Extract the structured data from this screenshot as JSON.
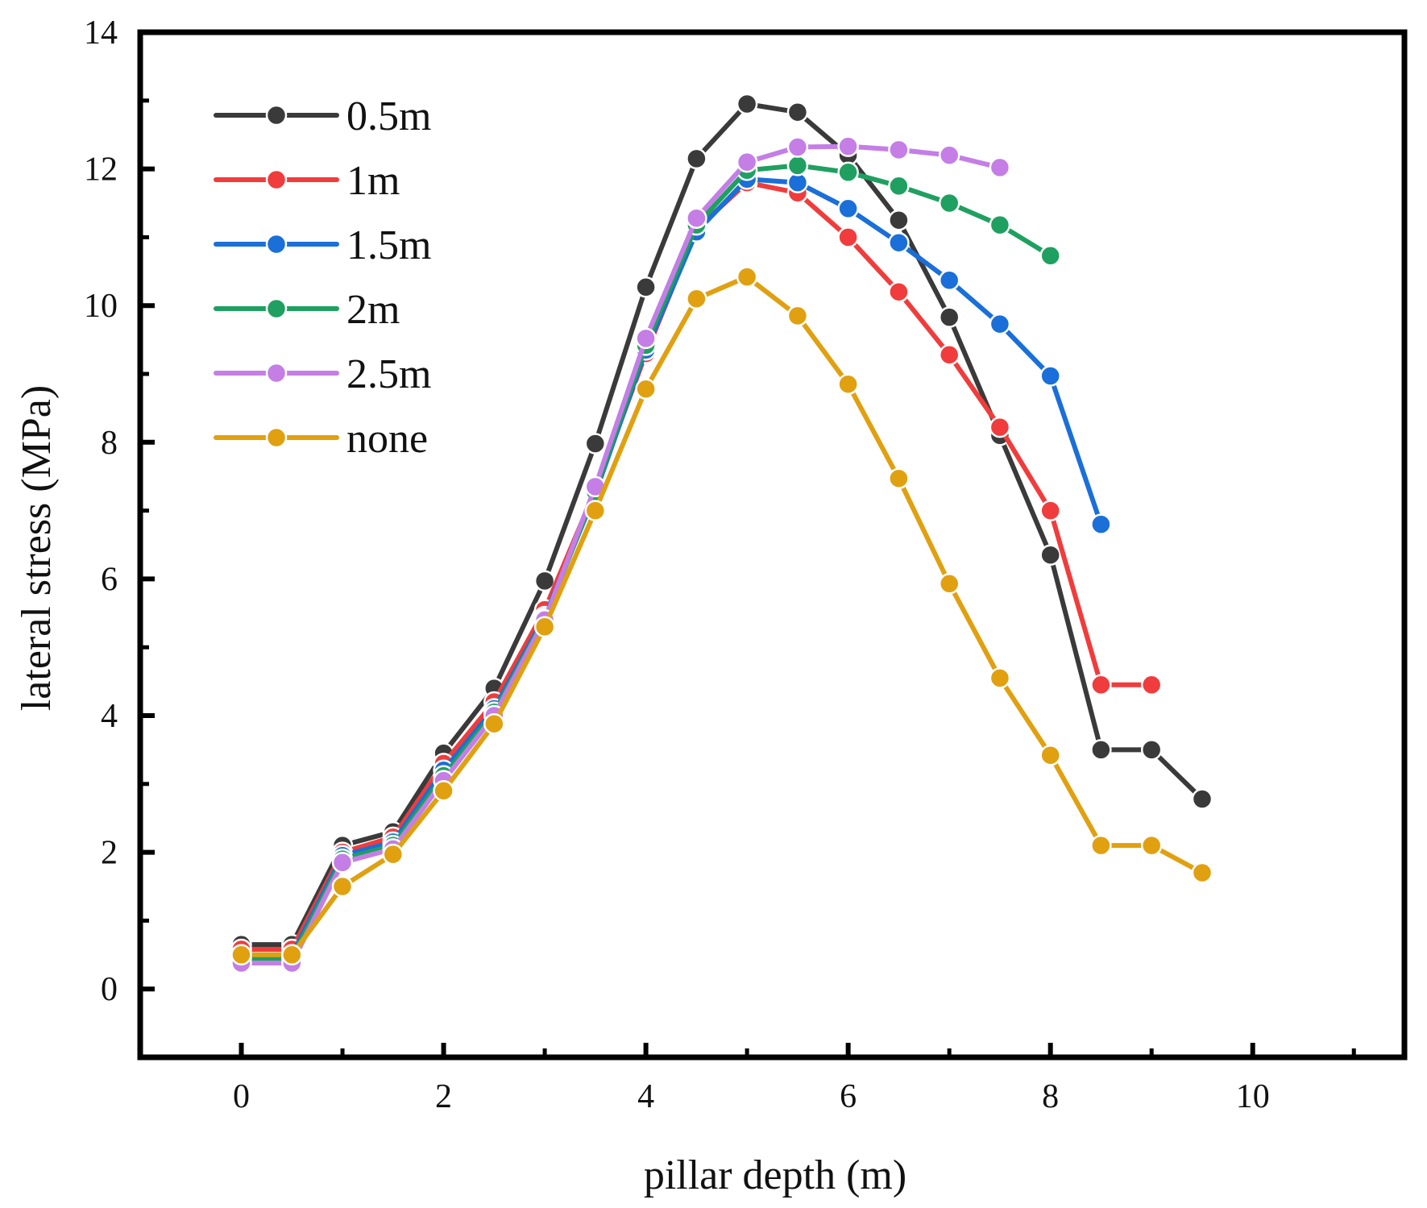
{
  "chart_data": {
    "type": "line",
    "title": "",
    "xlabel": "pillar depth (m)",
    "ylabel": "lateral stress (MPa)",
    "xlim": [
      -1,
      11.5
    ],
    "ylim": [
      -1,
      14
    ],
    "xticks": [
      0,
      2,
      4,
      6,
      8,
      10
    ],
    "yticks": [
      0,
      2,
      4,
      6,
      8,
      10,
      12,
      14
    ],
    "grid": false,
    "legend_position": "top-left",
    "series": [
      {
        "name": "0.5m",
        "color": "#3a3a3a",
        "x": [
          0,
          0.5,
          1,
          1.5,
          2,
          2.5,
          3,
          3.5,
          4,
          4.5,
          5,
          5.5,
          6,
          6.5,
          7,
          7.5,
          8,
          8.5,
          9,
          9.5
        ],
        "y": [
          0.65,
          0.65,
          2.1,
          2.3,
          3.45,
          4.4,
          5.97,
          7.98,
          10.27,
          12.15,
          12.95,
          12.83,
          12.2,
          11.25,
          9.83,
          8.1,
          6.35,
          3.5,
          3.5,
          2.78
        ]
      },
      {
        "name": "1m",
        "color": "#f03c3c",
        "x": [
          0,
          0.5,
          1,
          1.5,
          2,
          2.5,
          3,
          3.5,
          4,
          4.5,
          5,
          5.5,
          6,
          6.5,
          7,
          7.5,
          8,
          8.5,
          9
        ],
        "y": [
          0.58,
          0.58,
          2.0,
          2.22,
          3.3,
          4.2,
          5.55,
          7.3,
          9.3,
          11.12,
          11.8,
          11.65,
          11.0,
          10.2,
          9.28,
          8.22,
          7.0,
          4.45,
          4.45
        ]
      },
      {
        "name": "1.5m",
        "color": "#1a6fd8",
        "x": [
          0,
          0.5,
          1,
          1.5,
          2,
          2.5,
          3,
          3.5,
          4,
          4.5,
          5,
          5.5,
          6,
          6.5,
          7,
          7.5,
          8,
          8.5
        ],
        "y": [
          0.5,
          0.5,
          1.95,
          2.15,
          3.2,
          4.1,
          5.45,
          7.25,
          9.35,
          11.08,
          11.85,
          11.8,
          11.42,
          10.92,
          10.37,
          9.73,
          8.97,
          6.8
        ]
      },
      {
        "name": "2m",
        "color": "#1fa060",
        "x": [
          0,
          0.5,
          1,
          1.5,
          2,
          2.5,
          3,
          3.5,
          4,
          4.5,
          5,
          5.5,
          6,
          6.5,
          7,
          7.5,
          8
        ],
        "y": [
          0.45,
          0.45,
          1.9,
          2.1,
          3.12,
          4.05,
          5.42,
          7.28,
          9.42,
          11.18,
          11.98,
          12.05,
          11.95,
          11.75,
          11.5,
          11.18,
          10.73
        ]
      },
      {
        "name": "2.5m",
        "color": "#c47ee6",
        "x": [
          0,
          0.5,
          1,
          1.5,
          2,
          2.5,
          3,
          3.5,
          4,
          4.5,
          5,
          5.5,
          6,
          6.5,
          7,
          7.5
        ],
        "y": [
          0.38,
          0.38,
          1.85,
          2.05,
          3.05,
          4.0,
          5.4,
          7.35,
          9.52,
          11.28,
          12.1,
          12.32,
          12.33,
          12.28,
          12.2,
          12.02
        ]
      },
      {
        "name": "none",
        "color": "#e0a010",
        "x": [
          0,
          0.5,
          1,
          1.5,
          2,
          2.5,
          3,
          3.5,
          4,
          4.5,
          5,
          5.5,
          6,
          6.5,
          7,
          7.5,
          8,
          8.5,
          9,
          9.5
        ],
        "y": [
          0.5,
          0.5,
          1.5,
          1.97,
          2.9,
          3.88,
          5.3,
          7.0,
          8.78,
          10.1,
          10.42,
          9.85,
          8.85,
          7.47,
          5.93,
          4.55,
          3.42,
          2.1,
          2.1,
          1.7
        ]
      }
    ]
  }
}
